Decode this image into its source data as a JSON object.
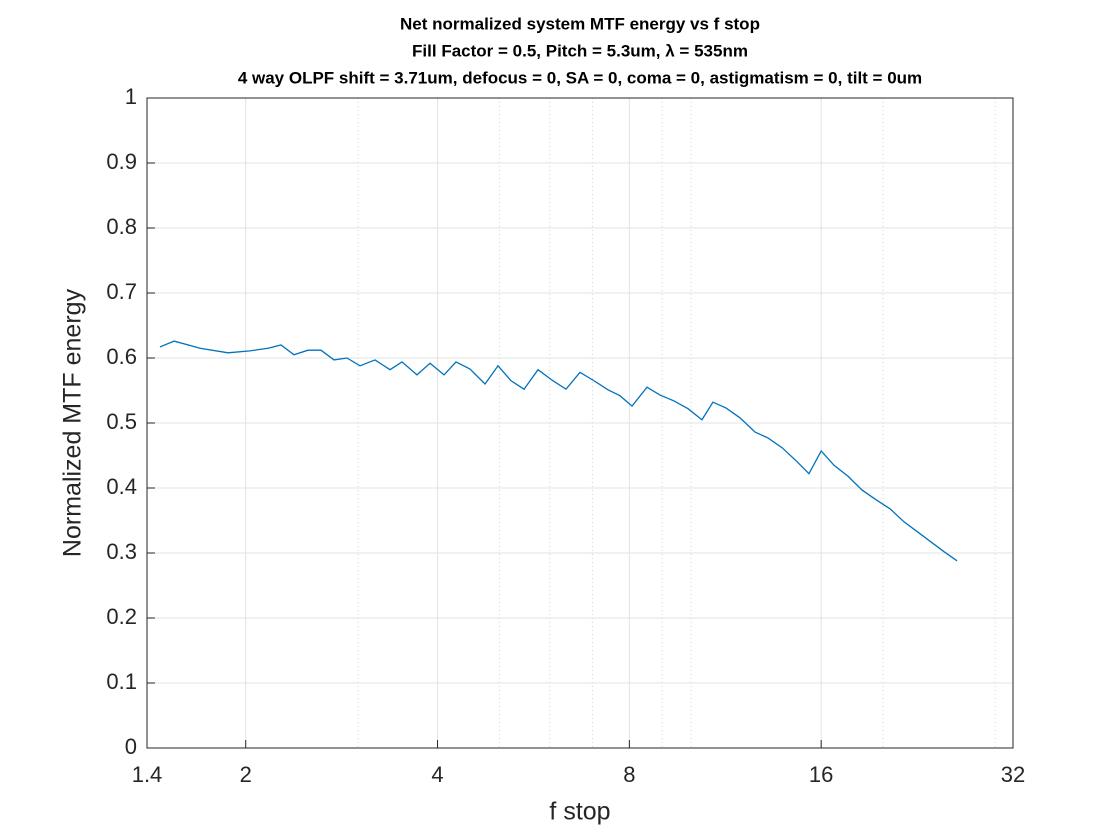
{
  "chart_data": {
    "type": "line",
    "title": "Net normalized system MTF energy vs f stop",
    "subtitle": [
      "Fill Factor = 0.5, Pitch = 5.3um, λ = 535nm",
      "4 way OLPF shift = 3.71um, defocus = 0, SA = 0, coma = 0, astigmatism = 0, tilt = 0um"
    ],
    "xlabel": "f stop",
    "ylabel": "Normalized MTF energy",
    "xscale": "log",
    "xlim": [
      1.4,
      32
    ],
    "xticks": [
      1.4,
      2,
      4,
      8,
      16,
      32
    ],
    "xminorticks": [
      3,
      5,
      6,
      7,
      9,
      10,
      20,
      30
    ],
    "ylim": [
      0,
      1
    ],
    "yticks": [
      0,
      0.1,
      0.2,
      0.3,
      0.4,
      0.5,
      0.6,
      0.7,
      0.8,
      0.9,
      1
    ],
    "grid": true,
    "x": [
      1.467,
      1.544,
      1.696,
      1.876,
      2.031,
      2.168,
      2.272,
      2.381,
      2.505,
      2.625,
      2.752,
      2.884,
      3.023,
      3.191,
      3.369,
      3.518,
      3.714,
      3.893,
      4.095,
      4.276,
      4.498,
      4.749,
      4.977,
      5.217,
      5.468,
      5.751,
      6.049,
      6.363,
      6.693,
      7.04,
      7.406,
      7.733,
      8.077,
      8.527,
      8.937,
      9.401,
      9.889,
      10.4,
      10.82,
      11.35,
      11.93,
      12.6,
      13.2,
      13.89,
      14.61,
      15.31,
      16.0,
      16.76,
      17.63,
      18.54,
      19.5,
      20.52,
      21.58,
      22.7,
      23.79,
      24.94,
      26.14
    ],
    "series": [
      {
        "name": "Net normalized MTF energy",
        "color": "#0072bd",
        "values": [
          0.617,
          0.626,
          0.615,
          0.608,
          0.611,
          0.615,
          0.62,
          0.605,
          0.612,
          0.612,
          0.597,
          0.6,
          0.588,
          0.597,
          0.582,
          0.594,
          0.574,
          0.592,
          0.574,
          0.594,
          0.583,
          0.56,
          0.588,
          0.565,
          0.552,
          0.582,
          0.566,
          0.552,
          0.578,
          0.565,
          0.551,
          0.542,
          0.526,
          0.555,
          0.543,
          0.534,
          0.522,
          0.505,
          0.532,
          0.523,
          0.508,
          0.486,
          0.477,
          0.462,
          0.442,
          0.422,
          0.457,
          0.435,
          0.418,
          0.397,
          0.382,
          0.368,
          0.348,
          0.332,
          0.317,
          0.302,
          0.288
        ]
      }
    ]
  }
}
